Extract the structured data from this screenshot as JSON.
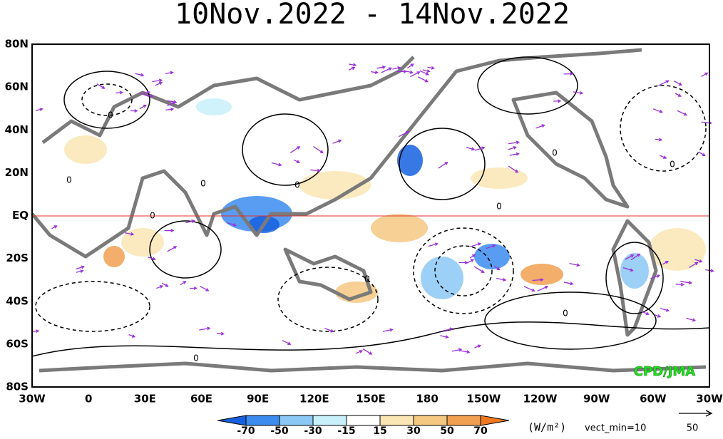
{
  "header": {
    "title": "10Nov.2022 - 14Nov.2022"
  },
  "map": {
    "lat_labels": [
      "80N",
      "60N",
      "40N",
      "20N",
      "EQ",
      "20S",
      "40S",
      "60S",
      "80S"
    ],
    "lon_labels": [
      "30W",
      "0",
      "30E",
      "60E",
      "90E",
      "120E",
      "150E",
      "180",
      "150W",
      "120W",
      "90W",
      "60W",
      "30W"
    ],
    "contour_labels": [
      "0",
      "0",
      "0",
      "0",
      "0",
      "0",
      "0",
      "0",
      "0",
      "0",
      "0"
    ],
    "credit": "CPD/JMA"
  },
  "colorbar": {
    "ticks": [
      -70,
      -50,
      -30,
      -15,
      15,
      30,
      50,
      70
    ],
    "units": "(W/m²)"
  },
  "vector_note": "vect_min=10",
  "reference_vector": 50
}
